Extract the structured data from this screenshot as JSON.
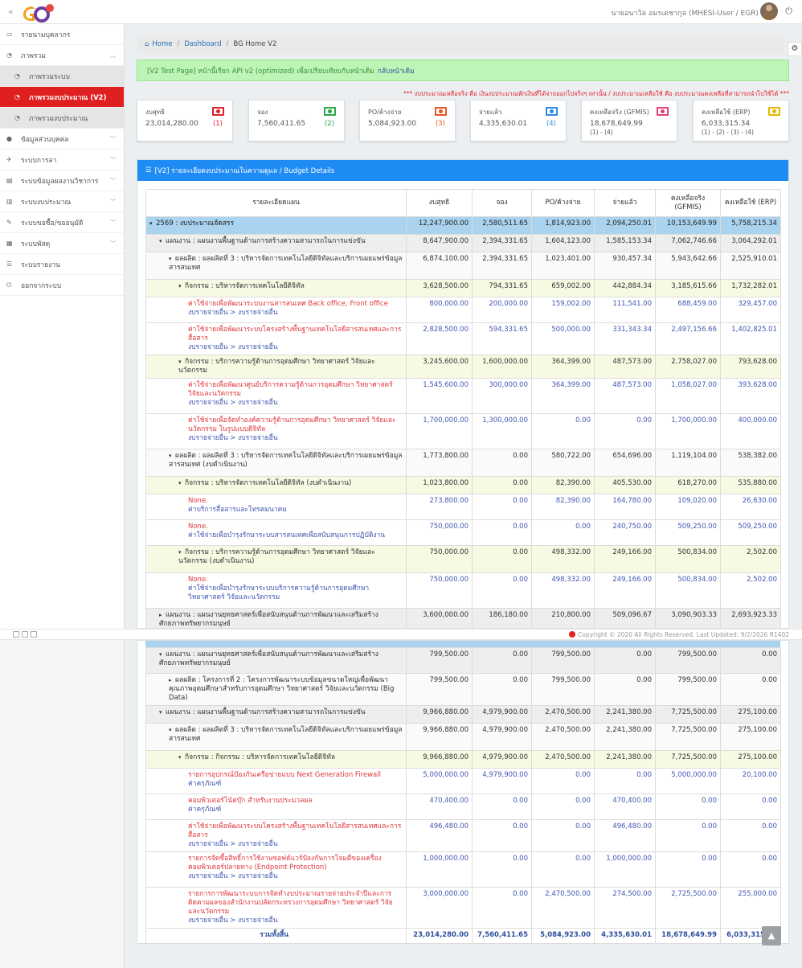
{
  "header": {
    "user_name": "นายอนาวิล อมรเดชากุล (MHESI-User / EGR)"
  },
  "sidebar": {
    "items": [
      {
        "label": "รายนามบุคลากร",
        "icon": "id-card-icon"
      },
      {
        "label": "ภาพรวม",
        "icon": "dashboard-icon",
        "open": true
      },
      {
        "label": "ภาพรวมระบบ",
        "icon": "dashboard-icon",
        "sub": true
      },
      {
        "label": "ภาพรวมงบประมาณ (V2)",
        "icon": "dashboard-icon",
        "sub": true,
        "active": true
      },
      {
        "label": "ภาพรวมงบประมาณ",
        "icon": "dashboard-icon",
        "sub": true
      },
      {
        "label": "ข้อมูลส่วนบุคคล",
        "icon": "user-icon"
      },
      {
        "label": "ระบบการลา",
        "icon": "plane-icon"
      },
      {
        "label": "ระบบข้อมูลผลงานวิชาการ",
        "icon": "book-icon"
      },
      {
        "label": "ระบบงบประมาณ",
        "icon": "bar-chart-icon"
      },
      {
        "label": "ระบบขอซื้อ/ขออนุมัติ",
        "icon": "edit-icon"
      },
      {
        "label": "ระบบพัสดุ",
        "icon": "cubes-icon"
      },
      {
        "label": "ระบบรายงาน",
        "icon": "list-icon"
      },
      {
        "label": "ออกจากระบบ",
        "icon": "power-icon"
      }
    ]
  },
  "breadcrumb": {
    "home": "Home",
    "dashboard": "Dashboard",
    "current": "BG Home V2"
  },
  "alert": {
    "text": "[V2 Test Page] หน้านี้เรียก API v2 (optimized) เพื่อเปรียบเทียบกับหน้าเดิม",
    "link": "กลับหน้าเดิม"
  },
  "note": "*** งบประมาณเหลือจริง คือ เงินงบประมาณหักเงินที่ได้จ่ายออกไปจริงๆ เท่านั้น / งบประมาณเหลือใช้ คือ งบประมาณคงเหลือที่สามารถนำไปใช้ได้ ***",
  "cards": [
    {
      "label": "งบสุทธิ",
      "value": "23,014,280.00",
      "count": "(1)",
      "color": "#e0202a"
    },
    {
      "label": "จอง",
      "value": "7,560,411.65",
      "count": "(2)",
      "color": "#28a745"
    },
    {
      "label": "PO/ค้างจ่าย",
      "value": "5,084,923.00",
      "count": "(3)",
      "color": "#e8561e"
    },
    {
      "label": "จ่ายแล้ว",
      "value": "4,335,630.01",
      "count": "(4)",
      "color": "#2d8ae6"
    },
    {
      "label": "คงเหลือจริง (GFMIS)",
      "value": "18,678,649.99",
      "formula": "(1) - (4)",
      "color": "#e0407a"
    },
    {
      "label": "คงเหลือใช้ (ERP)",
      "value": "6,033,315.34",
      "formula": "(1) - (2) - (3) - (4)",
      "color": "#e6b800"
    }
  ],
  "panel": {
    "title": "[V2] รายละเอียดงบประมาณในความดูแล / Budget Details"
  },
  "table": {
    "headers": [
      "รายละเอียดแผน",
      "งบสุทธิ",
      "จอง",
      "PO/ค้างจ่าย",
      "จ่ายแล้ว",
      "คงเหลือจริง (GFMIS)",
      "คงเหลือใช้ (ERP)"
    ],
    "rows1": [
      {
        "type": "year",
        "lvl": 0,
        "tog": "▾",
        "name": "2569 : งบประมาณจัดสรร",
        "v": [
          "12,247,900.00",
          "2,580,511.65",
          "1,814,923.00",
          "2,094,250.01",
          "10,153,649.99",
          "5,758,215.34"
        ]
      },
      {
        "type": "plan",
        "lvl": 1,
        "tog": "▾",
        "name": "แผนงาน : แผนงานพื้นฐานด้านการสร้างความสามารถในการแข่งขัน",
        "v": [
          "8,647,900.00",
          "2,394,331.65",
          "1,604,123.00",
          "1,585,153.34",
          "7,062,746.66",
          "3,064,292.01"
        ]
      },
      {
        "type": "prod",
        "lvl": 2,
        "tog": "▾",
        "name": "ผลผลิต : ผลผลิตที่ 3 : บริหารจัดการเทคโนโลยีดิจิทัลและบริการเผยแพร่ข้อมูลสารสนเทศ",
        "v": [
          "6,874,100.00",
          "2,394,331.65",
          "1,023,401.00",
          "930,457.34",
          "5,943,642.66",
          "2,525,910.01"
        ]
      },
      {
        "type": "act",
        "lvl": 3,
        "tog": "▾",
        "name": "กิจกรรม : บริหารจัดการเทคโนโลยีดิจิทัล",
        "v": [
          "3,628,500.00",
          "794,331.65",
          "659,002.00",
          "442,884.34",
          "3,185,615.66",
          "1,732,282.01"
        ]
      },
      {
        "type": "item",
        "lvl": 4,
        "name": "ค่าใช้จ่ายเพื่อพัฒนาระบบงานสารสนเทศ Back office, Front office",
        "sub": "งบรายจ่ายอื่น > งบรายจ่ายอื่น",
        "v": [
          "800,000.00",
          "200,000.00",
          "159,002.00",
          "111,541.00",
          "688,459.00",
          "329,457.00"
        ]
      },
      {
        "type": "item",
        "lvl": 4,
        "name": "ค่าใช้จ่ายเพื่อพัฒนาระบบโครงสร้างพื้นฐานเทคโนโลยีสารสนเทศและการสื่อสาร",
        "sub": "งบรายจ่ายอื่น > งบรายจ่ายอื่น",
        "v": [
          "2,828,500.00",
          "594,331.65",
          "500,000.00",
          "331,343.34",
          "2,497,156.66",
          "1,402,825.01"
        ]
      },
      {
        "type": "act",
        "lvl": 3,
        "tog": "▾",
        "name": "กิจกรรม : บริการความรู้ด้านการอุดมศึกษา วิทยาศาสตร์ วิจัยและนวัตกรรม",
        "v": [
          "3,245,600.00",
          "1,600,000.00",
          "364,399.00",
          "487,573.00",
          "2,758,027.00",
          "793,628.00"
        ]
      },
      {
        "type": "item",
        "lvl": 4,
        "name": "ค่าใช้จ่ายเพื่อพัฒนาศูนย์บริการความรู้ด้านการอุดมศึกษา วิทยาศาสตร์ วิจัยและนวัตกรรม",
        "sub": "งบรายจ่ายอื่น > งบรายจ่ายอื่น",
        "v": [
          "1,545,600.00",
          "300,000.00",
          "364,399.00",
          "487,573.00",
          "1,058,027.00",
          "393,628.00"
        ]
      },
      {
        "type": "item",
        "lvl": 4,
        "name": "ค่าใช้จ่ายเพื่อจัดทำองค์ความรู้ด้านการอุดมศึกษา วิทยาศาสตร์ วิจัยและนวัตกรรม ในรูปแบบดิจิทัล",
        "sub": "งบรายจ่ายอื่น > งบรายจ่ายอื่น",
        "v": [
          "1,700,000.00",
          "1,300,000.00",
          "0.00",
          "0.00",
          "1,700,000.00",
          "400,000.00"
        ]
      },
      {
        "type": "prod",
        "lvl": 2,
        "tog": "▾",
        "name": "ผลผลิต : ผลผลิตที่ 3 : บริหารจัดการเทคโนโลยีดิจิทัลและบริการเผยแพร่ข้อมูลสารสนเทศ (งบดำเนินงาน)",
        "v": [
          "1,773,800.00",
          "0.00",
          "580,722.00",
          "654,696.00",
          "1,119,104.00",
          "538,382.00"
        ]
      },
      {
        "type": "act",
        "lvl": 3,
        "tog": "▾",
        "name": "กิจกรรม : บริหารจัดการเทคโนโลยีดิจิทัล (งบดำเนินงาน)",
        "v": [
          "1,023,800.00",
          "0.00",
          "82,390.00",
          "405,530.00",
          "618,270.00",
          "535,880.00"
        ]
      },
      {
        "type": "item",
        "lvl": 4,
        "name": "None.",
        "sub": "ค่าบริการสื่อสารและโทรคมนาคม",
        "v": [
          "273,800.00",
          "0.00",
          "82,390.00",
          "164,780.00",
          "109,020.00",
          "26,630.00"
        ]
      },
      {
        "type": "item",
        "lvl": 4,
        "name": "None.",
        "sub": "ค่าใช้จ่ายเพื่อบำรุงรักษาระบบสารสนเทศเพื่อสนับสนุนการปฏิบัติงาน",
        "v": [
          "750,000.00",
          "0.00",
          "0.00",
          "240,750.00",
          "509,250.00",
          "509,250.00"
        ]
      },
      {
        "type": "act",
        "lvl": 3,
        "tog": "▾",
        "name": "กิจกรรม : บริการความรู้ด้านการอุดมศึกษา วิทยาศาสตร์ วิจัยและนวัตกรรม (งบดำเนินงาน)",
        "v": [
          "750,000.00",
          "0.00",
          "498,332.00",
          "249,166.00",
          "500,834.00",
          "2,502.00"
        ]
      },
      {
        "type": "item",
        "lvl": 4,
        "name": "None.",
        "sub": "ค่าใช้จ่ายเพื่อบำรุงรักษาระบบบริการความรู้ด้านการอุดมศึกษา วิทยาศาสตร์ วิจัยและนวัตกรรม",
        "v": [
          "750,000.00",
          "0.00",
          "498,332.00",
          "249,166.00",
          "500,834.00",
          "2,502.00"
        ]
      },
      {
        "type": "plan",
        "lvl": 1,
        "tog": "▸",
        "name": "แผนงาน : แผนงานยุทธศาสตร์เพื่อสนับสนุนด้านการพัฒนาและเสริมสร้างศักยภาพทรัพยากรมนุษย์",
        "v": [
          "3,600,000.00",
          "186,180.00",
          "210,800.00",
          "509,096.67",
          "3,090,903.33",
          "2,693,923.33"
        ]
      }
    ],
    "rows2": [
      {
        "type": "plan",
        "lvl": 1,
        "tog": "▾",
        "name": "แผนงาน : แผนงานยุทธศาสตร์เพื่อสนับสนุนด้านการพัฒนาและเสริมสร้างศักยภาพทรัพยากรมนุษย์",
        "v": [
          "799,500.00",
          "0.00",
          "799,500.00",
          "0.00",
          "799,500.00",
          "0.00"
        ]
      },
      {
        "type": "prod",
        "lvl": 2,
        "tog": "▸",
        "name": "ผลผลิต : โครงการที่ 2 : โครงการพัฒนาระบบข้อมูลขนาดใหญ่เพื่อพัฒนาคุณภาพอุดมศึกษาสำหรับการอุดมศึกษา วิทยาศาสตร์ วิจัยและนวัตกรรม (Big Data)",
        "v": [
          "799,500.00",
          "0.00",
          "799,500.00",
          "0.00",
          "799,500.00",
          "0.00"
        ]
      },
      {
        "type": "plan",
        "lvl": 1,
        "tog": "▾",
        "name": "แผนงาน : แผนงานพื้นฐานด้านการสร้างความสามารถในการแข่งขัน",
        "v": [
          "9,966,880.00",
          "4,979,900.00",
          "2,470,500.00",
          "2,241,380.00",
          "7,725,500.00",
          "275,100.00"
        ]
      },
      {
        "type": "prod",
        "lvl": 2,
        "tog": "▾",
        "name": "ผลผลิต : ผลผลิตที่ 3 : บริหารจัดการเทคโนโลยีดิจิทัลและบริการเผยแพร่ข้อมูลสารสนเทศ",
        "v": [
          "9,966,880.00",
          "4,979,900.00",
          "2,470,500.00",
          "2,241,380.00",
          "7,725,500.00",
          "275,100.00"
        ]
      },
      {
        "type": "act",
        "lvl": 3,
        "tog": "▾",
        "name": "กิจกรรม : กิจกรรม : บริหารจัดการเทคโนโลยีดิจิทัล",
        "v": [
          "9,966,880.00",
          "4,979,900.00",
          "2,470,500.00",
          "2,241,380.00",
          "7,725,500.00",
          "275,100.00"
        ]
      },
      {
        "type": "item",
        "lvl": 4,
        "name": "รายการอุปกรณ์ป้องกันเครือข่ายแบบ Next Generation Firewall",
        "sub": "ค่าครุภัณฑ์",
        "v": [
          "5,000,000.00",
          "4,979,900.00",
          "0.00",
          "0.00",
          "5,000,000.00",
          "20,100.00"
        ]
      },
      {
        "type": "item",
        "lvl": 4,
        "name": "คอมพิวเตอร์โน้ตบุ๊ก สำหรับงานประมวลผล",
        "sub": "ค่าครุภัณฑ์",
        "v": [
          "470,400.00",
          "0.00",
          "0.00",
          "470,400.00",
          "0.00",
          "0.00"
        ]
      },
      {
        "type": "item",
        "lvl": 4,
        "name": "ค่าใช้จ่ายเพื่อพัฒนาระบบโครงสร้างพื้นฐานเทคโนโลยีสารสนเทศและการสื่อสาร",
        "sub": "งบรายจ่ายอื่น > งบรายจ่ายอื่น",
        "v": [
          "496,480.00",
          "0.00",
          "0.00",
          "496,480.00",
          "0.00",
          "0.00"
        ]
      },
      {
        "type": "item",
        "lvl": 4,
        "name": "รายการจัดซื้อสิทธิ์การใช้งานซอฟต์แวร์ป้องกันการโจมตีของเครื่องคอมพิวเตอร์ปลายทาง (Endpoint Protection)",
        "sub": "งบรายจ่ายอื่น > งบรายจ่ายอื่น",
        "v": [
          "1,000,000.00",
          "0.00",
          "0.00",
          "1,000,000.00",
          "0.00",
          "0.00"
        ]
      },
      {
        "type": "item",
        "lvl": 4,
        "name": "รายการการพัฒนาระบบการจัดทำงบประมาณรายจ่ายประจำปีและการติดตามผลของสำนักงานปลัดกระทรวงการอุดมศึกษา วิทยาศาสตร์ วิจัยและนวัตกรรม",
        "sub": "งบรายจ่ายอื่น > งบรายจ่ายอื่น",
        "v": [
          "3,000,000.00",
          "0.00",
          "2,470,500.00",
          "274,500.00",
          "2,725,500.00",
          "255,000.00"
        ]
      }
    ],
    "total": {
      "label": "รวมทั้งสิ้น",
      "v": [
        "23,014,280.00",
        "7,560,411.65",
        "5,084,923.00",
        "4,335,630.01",
        "18,678,649.99",
        "6,033,315.34"
      ]
    }
  },
  "footer": {
    "copyright": "Copyright © 2020 All Rights Reserved. Last Updated: 9/2/2026 R1402"
  }
}
